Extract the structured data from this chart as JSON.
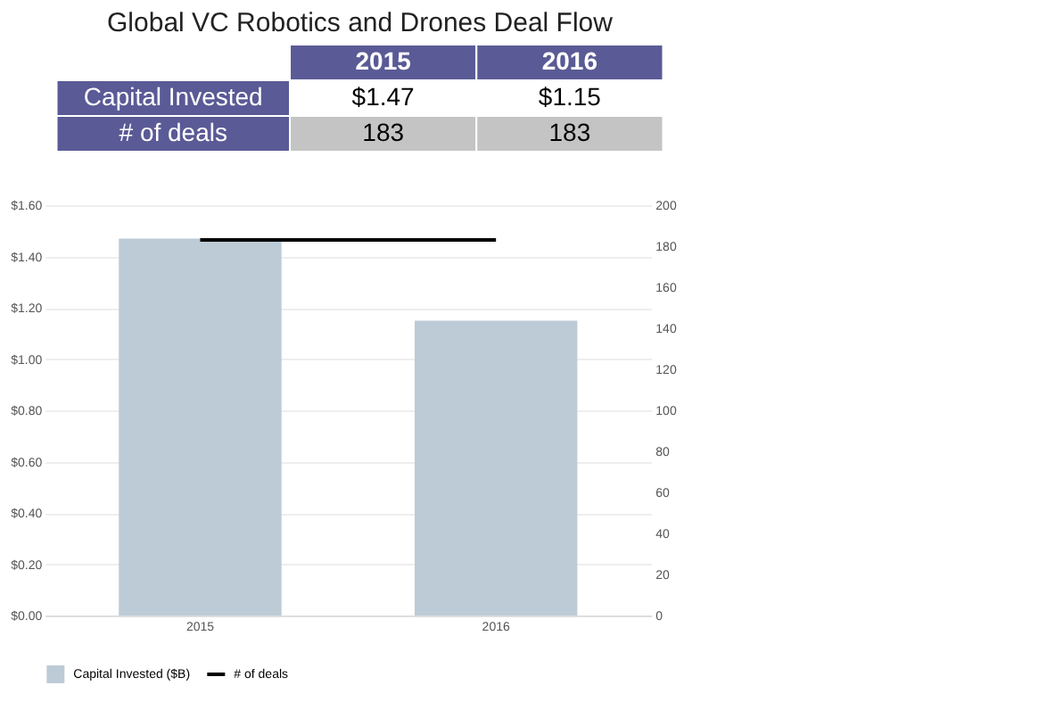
{
  "chart_data": [
    {
      "type": "other",
      "title": "Global VC Robotics and Drones Deal Flow",
      "categories": [
        "2015",
        "2016"
      ],
      "series": [
        {
          "name": "Capital Invested",
          "values": [
            1.47,
            1.15
          ],
          "value_labels": [
            "$1.47",
            "$1.15"
          ]
        },
        {
          "name": "# of deals",
          "values": [
            183,
            183
          ],
          "value_labels": [
            "183",
            "183"
          ]
        }
      ]
    },
    {
      "type": "bar",
      "categories": [
        "2015",
        "2016"
      ],
      "series": [
        {
          "name": "Capital Invested ($B)",
          "color": "#bccbd6",
          "values": [
            1.47,
            1.15
          ]
        },
        {
          "name": "# of deals",
          "type": "line",
          "axis": "y2",
          "color": "#000000",
          "values": [
            183,
            183
          ]
        }
      ],
      "ylim": [
        0,
        1.6
      ],
      "yticks": [
        {
          "value": 0,
          "label": "$0.00"
        },
        {
          "value": 0.2,
          "label": "$0.20"
        },
        {
          "value": 0.4,
          "label": "$0.40"
        },
        {
          "value": 0.6,
          "label": "$0.60"
        },
        {
          "value": 0.8,
          "label": "$0.80"
        },
        {
          "value": 1.0,
          "label": "$1.00"
        },
        {
          "value": 1.2,
          "label": "$1.20"
        },
        {
          "value": 1.4,
          "label": "$1.40"
        },
        {
          "value": 1.6,
          "label": "$1.60"
        }
      ],
      "y2lim": [
        0,
        200
      ],
      "y2ticks": [
        0,
        20,
        40,
        60,
        80,
        100,
        120,
        140,
        160,
        180,
        200
      ],
      "grid": "y",
      "legend": "bottom"
    }
  ]
}
